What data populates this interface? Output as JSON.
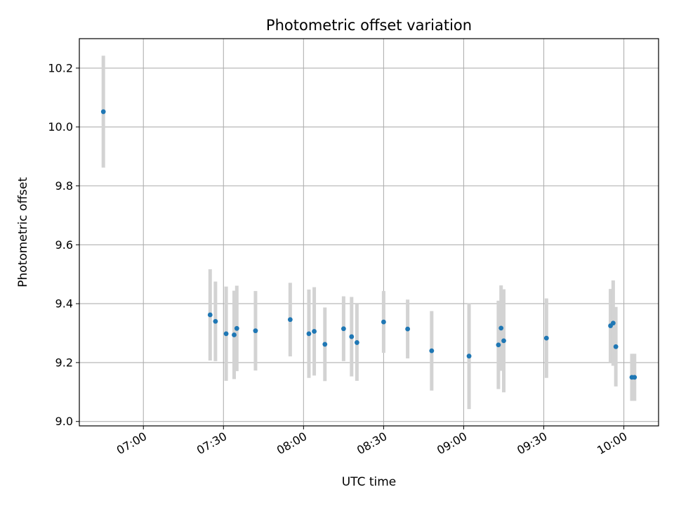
{
  "chart_data": {
    "type": "scatter",
    "title": "Photometric offset variation",
    "xlabel": "UTC time",
    "ylabel": "Photometric offset",
    "xlim": [
      "06:36",
      "10:13"
    ],
    "ylim": [
      8.985,
      10.3
    ],
    "xticks": [
      "07:00",
      "07:30",
      "08:00",
      "08:30",
      "09:00",
      "09:30",
      "10:00"
    ],
    "yticks": [
      9.0,
      9.2,
      9.4,
      9.6,
      9.8,
      10.0,
      10.2
    ],
    "ytick_labels": [
      "9.0",
      "9.2",
      "9.4",
      "9.6",
      "9.8",
      "10.0",
      "10.2"
    ],
    "grid": true,
    "marker_color": "#1f77b4",
    "errorbar_color": "#d3d3d3",
    "points": [
      {
        "x": "06:45",
        "y": 10.052,
        "err": 0.19
      },
      {
        "x": "07:25",
        "y": 9.362,
        "err": 0.155
      },
      {
        "x": "07:27",
        "y": 9.34,
        "err": 0.135
      },
      {
        "x": "07:31",
        "y": 9.298,
        "err": 0.16
      },
      {
        "x": "07:34",
        "y": 9.294,
        "err": 0.15
      },
      {
        "x": "07:35",
        "y": 9.316,
        "err": 0.145
      },
      {
        "x": "07:42",
        "y": 9.308,
        "err": 0.135
      },
      {
        "x": "07:55",
        "y": 9.346,
        "err": 0.125
      },
      {
        "x": "08:02",
        "y": 9.298,
        "err": 0.15
      },
      {
        "x": "08:04",
        "y": 9.306,
        "err": 0.15
      },
      {
        "x": "08:08",
        "y": 9.262,
        "err": 0.125
      },
      {
        "x": "08:15",
        "y": 9.315,
        "err": 0.11
      },
      {
        "x": "08:18",
        "y": 9.288,
        "err": 0.135
      },
      {
        "x": "08:20",
        "y": 9.268,
        "err": 0.13
      },
      {
        "x": "08:30",
        "y": 9.338,
        "err": 0.105
      },
      {
        "x": "08:39",
        "y": 9.314,
        "err": 0.1
      },
      {
        "x": "08:48",
        "y": 9.24,
        "err": 0.135
      },
      {
        "x": "09:02",
        "y": 9.222,
        "err": 0.18
      },
      {
        "x": "09:13",
        "y": 9.26,
        "err": 0.15
      },
      {
        "x": "09:14",
        "y": 9.317,
        "err": 0.145
      },
      {
        "x": "09:15",
        "y": 9.274,
        "err": 0.175
      },
      {
        "x": "09:31",
        "y": 9.283,
        "err": 0.135
      },
      {
        "x": "09:55",
        "y": 9.325,
        "err": 0.125
      },
      {
        "x": "09:56",
        "y": 9.334,
        "err": 0.145
      },
      {
        "x": "09:57",
        "y": 9.254,
        "err": 0.135
      },
      {
        "x": "10:03",
        "y": 9.15,
        "err": 0.08
      },
      {
        "x": "10:04",
        "y": 9.15,
        "err": 0.08
      }
    ]
  }
}
